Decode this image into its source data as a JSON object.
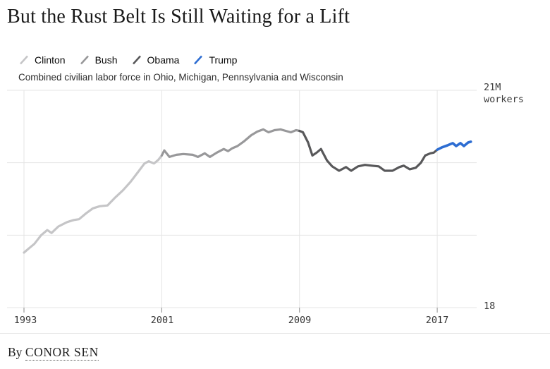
{
  "colors": {
    "clinton": "#c5c5c7",
    "bush": "#98989a",
    "obama": "#58585a",
    "trump": "#2d6dd2",
    "gridline": "#e5e5e5",
    "tick": "#8a8a8a"
  },
  "footer": {
    "byline_prefix": "By",
    "author": "CONOR SEN"
  },
  "chart_data": {
    "type": "line",
    "title": "But the Rust Belt Is Still Waiting for a Lift",
    "subtitle": "Combined civilian labor force in Ohio, Michigan, Pennsylvania and Wisconsin",
    "y_axis": {
      "unit": "M workers",
      "range": [
        18,
        21
      ],
      "gridline_values": [
        21,
        20,
        19,
        18
      ],
      "top_label": [
        "21M",
        "workers"
      ],
      "bottom_label": "18"
    },
    "x_axis": {
      "range": [
        1993,
        2019.1
      ],
      "tick_years": [
        1993,
        2001,
        2009,
        2017
      ],
      "tick_labels": [
        "1993",
        "2001",
        "2009",
        "2017"
      ]
    },
    "legend_position": "top",
    "grid": true,
    "series": [
      {
        "name": "Clinton",
        "color": "#c5c5c7",
        "points": [
          [
            1993.0,
            18.76
          ],
          [
            1993.25,
            18.81
          ],
          [
            1993.6,
            18.88
          ],
          [
            1994.0,
            19.0
          ],
          [
            1994.35,
            19.07
          ],
          [
            1994.6,
            19.03
          ],
          [
            1995.0,
            19.12
          ],
          [
            1995.5,
            19.18
          ],
          [
            1995.9,
            19.21
          ],
          [
            1996.2,
            19.22
          ],
          [
            1996.6,
            19.3
          ],
          [
            1997.0,
            19.37
          ],
          [
            1997.4,
            19.4
          ],
          [
            1997.85,
            19.41
          ],
          [
            1998.3,
            19.52
          ],
          [
            1998.75,
            19.62
          ],
          [
            1999.2,
            19.74
          ],
          [
            1999.65,
            19.88
          ],
          [
            2000.0,
            19.99
          ],
          [
            2000.25,
            20.02
          ],
          [
            2000.55,
            19.99
          ],
          [
            2000.8,
            20.04
          ],
          [
            2001.0,
            20.1
          ]
        ]
      },
      {
        "name": "Bush",
        "color": "#98989a",
        "points": [
          [
            2001.0,
            20.1
          ],
          [
            2001.15,
            20.17
          ],
          [
            2001.45,
            20.08
          ],
          [
            2001.85,
            20.11
          ],
          [
            2002.25,
            20.12
          ],
          [
            2002.8,
            20.11
          ],
          [
            2003.1,
            20.08
          ],
          [
            2003.5,
            20.13
          ],
          [
            2003.8,
            20.08
          ],
          [
            2004.2,
            20.14
          ],
          [
            2004.6,
            20.19
          ],
          [
            2004.85,
            20.16
          ],
          [
            2005.1,
            20.2
          ],
          [
            2005.4,
            20.23
          ],
          [
            2005.8,
            20.3
          ],
          [
            2006.2,
            20.38
          ],
          [
            2006.55,
            20.43
          ],
          [
            2006.9,
            20.46
          ],
          [
            2007.2,
            20.42
          ],
          [
            2007.55,
            20.45
          ],
          [
            2007.9,
            20.46
          ],
          [
            2008.2,
            20.44
          ],
          [
            2008.5,
            20.42
          ],
          [
            2008.8,
            20.45
          ],
          [
            2009.0,
            20.44
          ]
        ]
      },
      {
        "name": "Obama",
        "color": "#58585a",
        "points": [
          [
            2009.0,
            20.44
          ],
          [
            2009.2,
            20.42
          ],
          [
            2009.5,
            20.28
          ],
          [
            2009.75,
            20.1
          ],
          [
            2010.0,
            20.14
          ],
          [
            2010.25,
            20.19
          ],
          [
            2010.6,
            20.03
          ],
          [
            2010.9,
            19.95
          ],
          [
            2011.3,
            19.89
          ],
          [
            2011.7,
            19.94
          ],
          [
            2012.0,
            19.89
          ],
          [
            2012.4,
            19.95
          ],
          [
            2012.8,
            19.97
          ],
          [
            2013.2,
            19.96
          ],
          [
            2013.6,
            19.95
          ],
          [
            2013.95,
            19.89
          ],
          [
            2014.4,
            19.89
          ],
          [
            2014.8,
            19.94
          ],
          [
            2015.05,
            19.96
          ],
          [
            2015.4,
            19.91
          ],
          [
            2015.75,
            19.93
          ],
          [
            2016.05,
            20.0
          ],
          [
            2016.3,
            20.1
          ],
          [
            2016.6,
            20.13
          ],
          [
            2016.8,
            20.14
          ],
          [
            2017.0,
            20.18
          ]
        ]
      },
      {
        "name": "Trump",
        "color": "#2d6dd2",
        "points": [
          [
            2017.0,
            20.18
          ],
          [
            2017.25,
            20.21
          ],
          [
            2017.6,
            20.24
          ],
          [
            2017.9,
            20.27
          ],
          [
            2018.1,
            20.23
          ],
          [
            2018.35,
            20.27
          ],
          [
            2018.55,
            20.23
          ],
          [
            2018.8,
            20.28
          ],
          [
            2018.95,
            20.29
          ]
        ]
      }
    ]
  }
}
